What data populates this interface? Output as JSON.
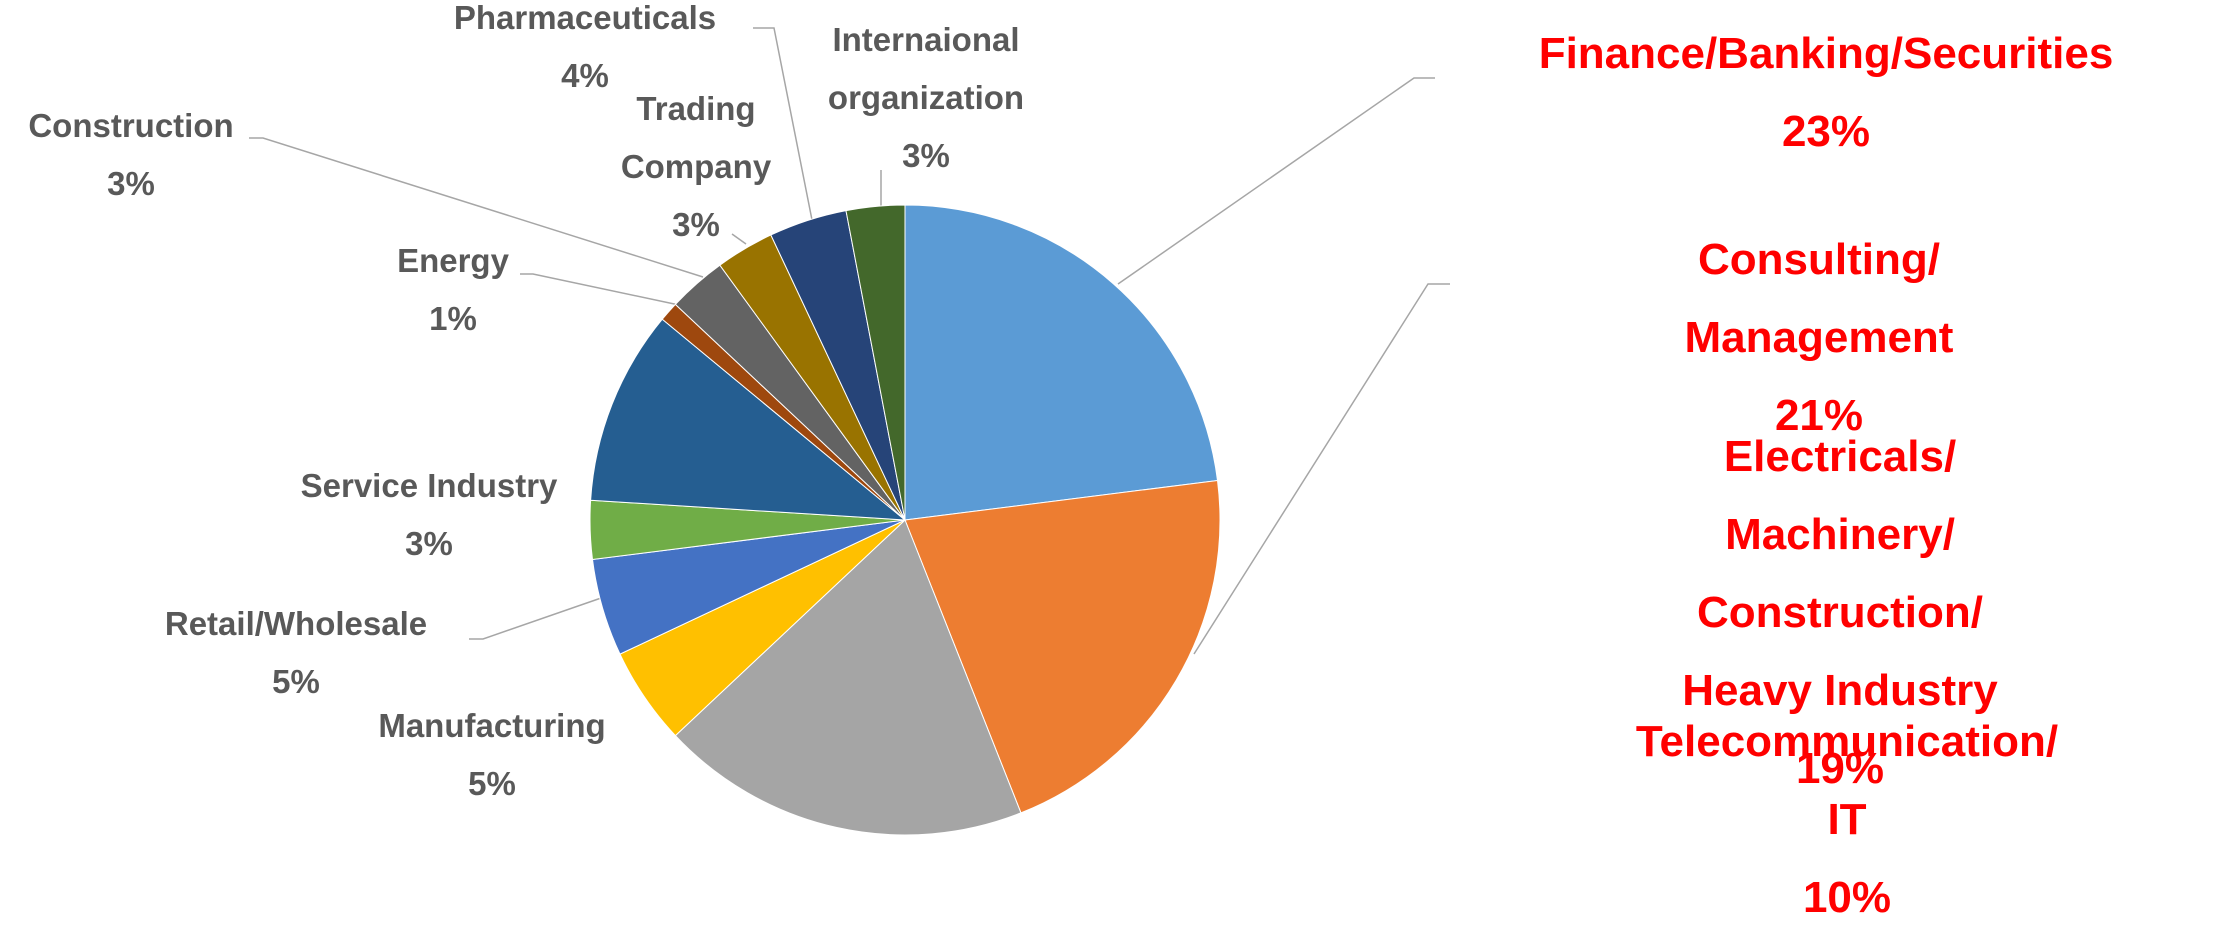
{
  "chart_data": {
    "type": "pie",
    "categories": [
      "Finance/Banking/Securities",
      "Consulting/ Management",
      "Electricals/ Machinery/\nConstruction/ Heavy Industry",
      "Manufacturing",
      "Retail/Wholesale",
      "Service Industry",
      "Telecommunication/ IT",
      "Energy",
      "Construction",
      "Trading\nCompany",
      "Pharmaceuticals",
      "Internaional\norganization"
    ],
    "values": [
      23,
      21,
      19,
      5,
      5,
      3,
      10,
      1,
      3,
      3,
      4,
      3
    ],
    "value_labels": [
      "23%",
      "21%",
      "19%",
      "5%",
      "5%",
      "3%",
      "10%",
      "1%",
      "3%",
      "3%",
      "4%",
      "3%"
    ],
    "colors": [
      "#5b9bd5",
      "#ed7d31",
      "#a5a5a5",
      "#ffc000",
      "#4472c4",
      "#70ad47",
      "#255e91",
      "#9e480e",
      "#636363",
      "#997300",
      "#264478",
      "#43682b"
    ],
    "label_colors": [
      "#ff0000",
      "#ff0000",
      "#ff0000",
      "#595959",
      "#595959",
      "#595959",
      "#ff0000",
      "#595959",
      "#595959",
      "#595959",
      "#595959",
      "#595959"
    ]
  }
}
